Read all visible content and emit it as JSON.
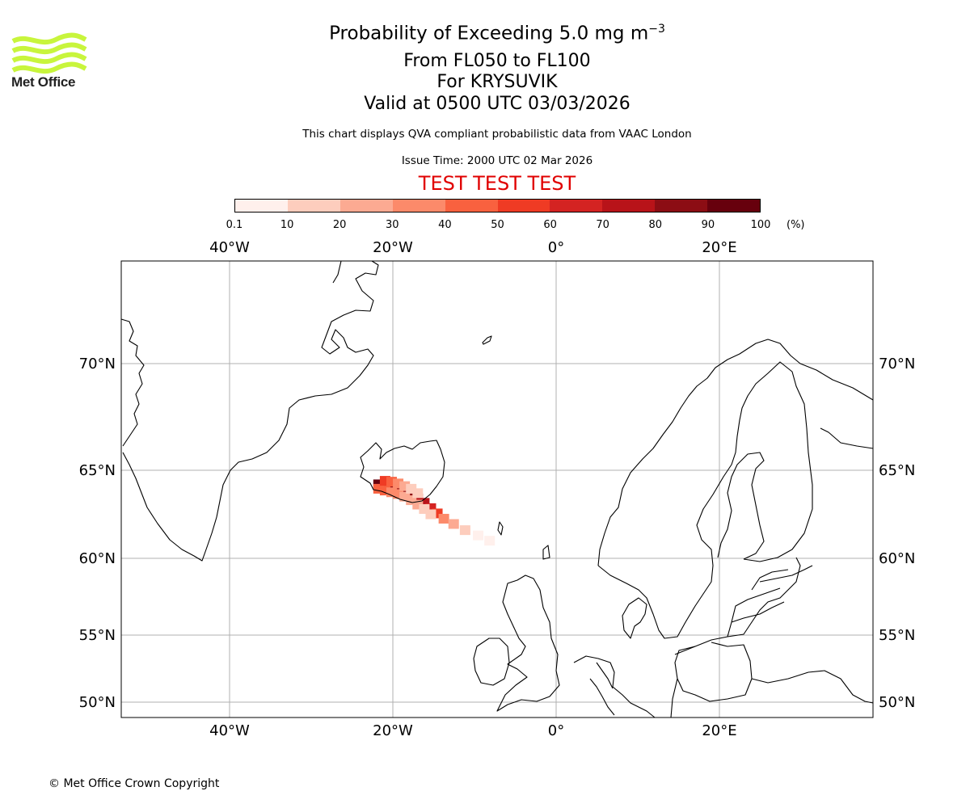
{
  "logo": {
    "name": "Met Office",
    "color": "#c8f53c"
  },
  "title": {
    "main": "Probability of Exceeding 5.0 mg m",
    "main_exp": "−3",
    "line2": "From FL050 to FL100",
    "line3": "For KRYSUVIK",
    "line4": "Valid at 0500 UTC 03/03/2026"
  },
  "subtitle": "This chart displays QVA compliant probabilistic data from VAAC London",
  "issue_time": "Issue Time: 2000 UTC 02 Mar 2026",
  "test_banner": "TEST TEST TEST",
  "colorbar": {
    "labels": [
      "0.1",
      "10",
      "20",
      "30",
      "40",
      "50",
      "60",
      "70",
      "80",
      "90",
      "100"
    ],
    "unit": "(%)",
    "colors": [
      "#fff0ec",
      "#fdcdbd",
      "#fcaa92",
      "#fc8a6a",
      "#f9613f",
      "#ef3b24",
      "#d42322",
      "#b81319",
      "#8c0d14",
      "#67000d"
    ]
  },
  "map": {
    "lon_labels": [
      "40°W",
      "20°W",
      "0°",
      "20°E"
    ],
    "lat_labels": [
      "70°N",
      "65°N",
      "60°N",
      "55°N",
      "50°N"
    ],
    "lon_values": [
      -40,
      -20,
      0,
      20
    ],
    "lat_values": [
      70,
      65,
      60,
      55,
      50
    ],
    "volcano": "KRYSUVIK",
    "plume_cells": [
      {
        "lon": -21.8,
        "lat": 64.2,
        "pct": 95
      },
      {
        "lon": -21.0,
        "lat": 64.15,
        "pct": 92
      },
      {
        "lon": -20.2,
        "lat": 64.1,
        "pct": 88
      },
      {
        "lon": -19.4,
        "lat": 64.0,
        "pct": 85
      },
      {
        "lon": -18.6,
        "lat": 63.85,
        "pct": 80
      },
      {
        "lon": -17.8,
        "lat": 63.65,
        "pct": 82
      },
      {
        "lon": -17.0,
        "lat": 63.4,
        "pct": 78
      },
      {
        "lon": -16.2,
        "lat": 63.15,
        "pct": 72
      },
      {
        "lon": -15.4,
        "lat": 62.85,
        "pct": 62
      },
      {
        "lon": -14.6,
        "lat": 62.55,
        "pct": 50
      },
      {
        "lon": -13.8,
        "lat": 62.25,
        "pct": 38
      },
      {
        "lon": -12.6,
        "lat": 61.95,
        "pct": 25
      },
      {
        "lon": -11.2,
        "lat": 61.6,
        "pct": 14
      },
      {
        "lon": -9.6,
        "lat": 61.3,
        "pct": 6
      },
      {
        "lon": -8.2,
        "lat": 61.0,
        "pct": 3
      },
      {
        "lon": -21.8,
        "lat": 63.95,
        "pct": 45
      },
      {
        "lon": -21.0,
        "lat": 63.85,
        "pct": 40
      },
      {
        "lon": -20.2,
        "lat": 63.75,
        "pct": 35
      },
      {
        "lon": -19.4,
        "lat": 63.65,
        "pct": 30
      },
      {
        "lon": -18.6,
        "lat": 63.5,
        "pct": 28
      },
      {
        "lon": -17.8,
        "lat": 63.3,
        "pct": 25
      },
      {
        "lon": -17.0,
        "lat": 63.05,
        "pct": 20
      },
      {
        "lon": -16.2,
        "lat": 62.8,
        "pct": 15
      },
      {
        "lon": -15.4,
        "lat": 62.5,
        "pct": 10
      },
      {
        "lon": -21.0,
        "lat": 64.4,
        "pct": 55
      },
      {
        "lon": -20.2,
        "lat": 64.35,
        "pct": 42
      },
      {
        "lon": -19.4,
        "lat": 64.25,
        "pct": 30
      },
      {
        "lon": -18.6,
        "lat": 64.1,
        "pct": 22
      },
      {
        "lon": -17.8,
        "lat": 63.95,
        "pct": 18
      },
      {
        "lon": -17.0,
        "lat": 63.7,
        "pct": 12
      }
    ]
  },
  "copyright": "© Met Office Crown Copyright"
}
